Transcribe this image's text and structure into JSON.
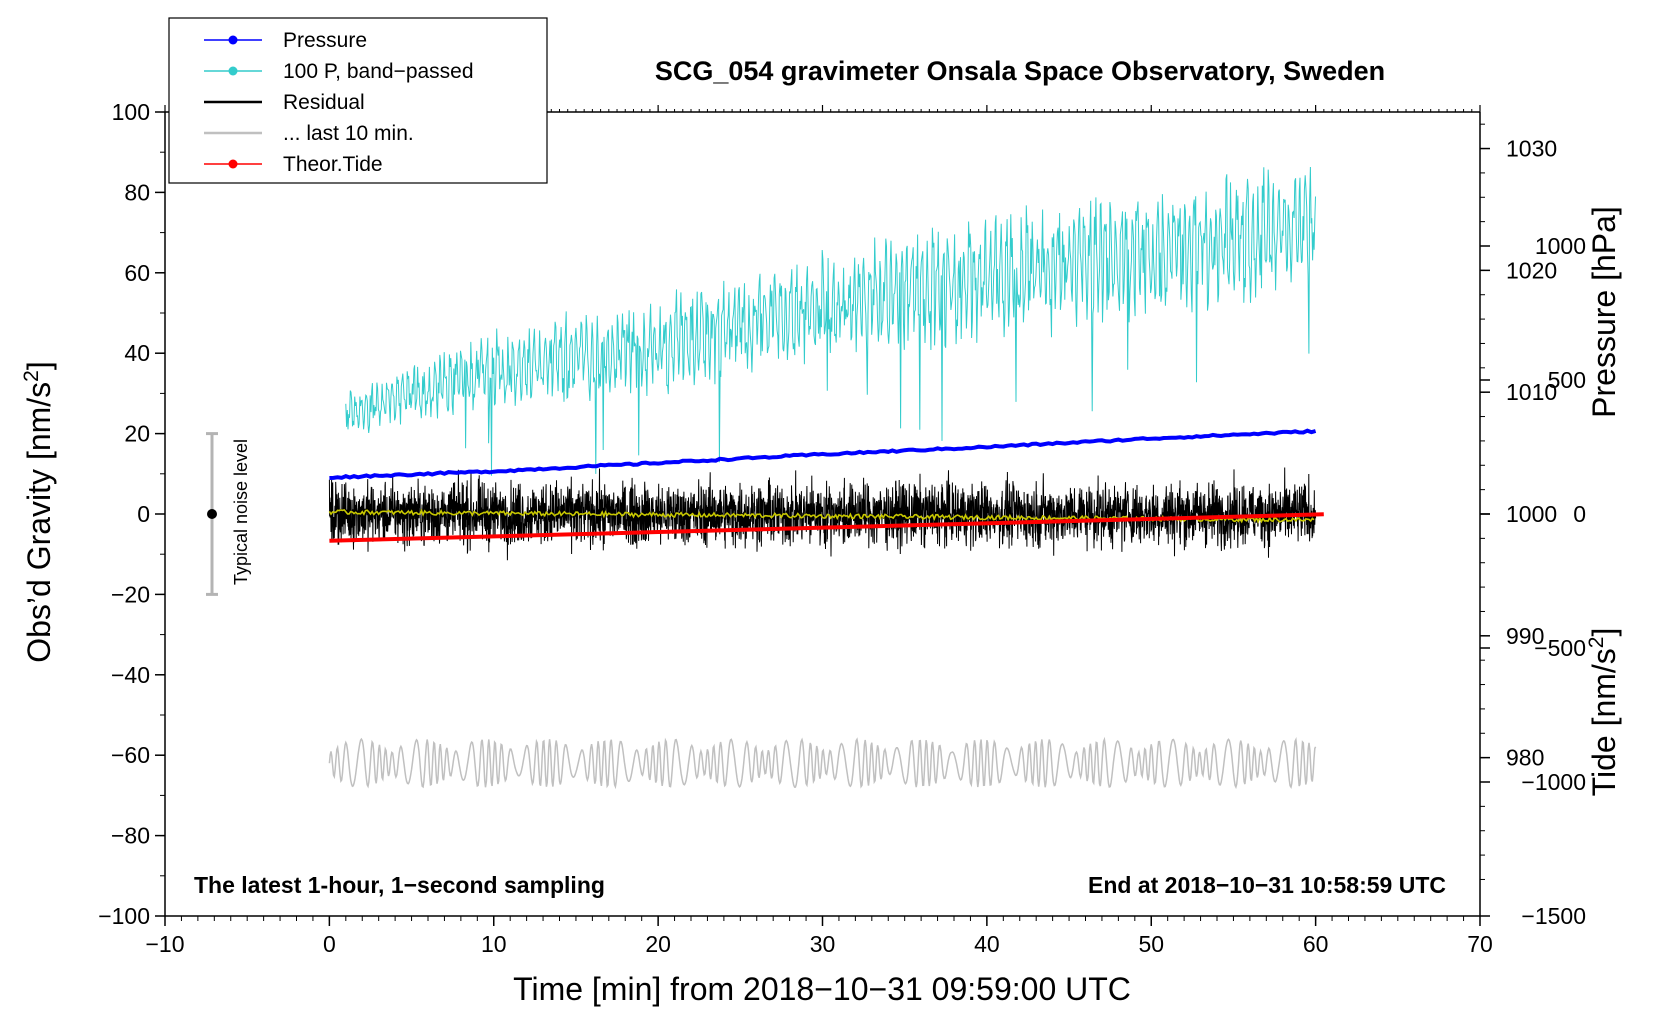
{
  "chart_data": {
    "type": "line",
    "title": "SCG_054 gravimeter Onsala Space Observatory, Sweden",
    "xlabel": "Time [min] from 2018−10−31 09:59:00 UTC",
    "ylabel_left": "Obs’d Gravity [nm/s",
    "ylabel_left_sup": "2",
    "ylabel_left_end": "]",
    "ylabel_pressure": "Pressure [hPa]",
    "ylabel_tide": "Tide [nm/s",
    "ylabel_tide_sup": "2",
    "ylabel_tide_end": "]",
    "xlim": [
      -10,
      70
    ],
    "ylim": [
      -100,
      100
    ],
    "pressure_lim": [
      967,
      1033
    ],
    "tide_lim": [
      -1500,
      1500
    ],
    "x_ticks": [
      -10,
      0,
      10,
      20,
      30,
      40,
      50,
      60,
      70
    ],
    "x_tick_labels": [
      "−10",
      "0",
      "10",
      "20",
      "30",
      "40",
      "50",
      "60",
      "70"
    ],
    "y_ticks": [
      100,
      80,
      60,
      40,
      20,
      0,
      -20,
      -40,
      -60,
      -80,
      -100
    ],
    "y_tick_labels": [
      "100",
      "80",
      "60",
      "40",
      "20",
      "0",
      "−20",
      "−40",
      "−60",
      "−80",
      "−100"
    ],
    "pressure_ticks": [
      980,
      990,
      1000,
      1010,
      1020,
      1030
    ],
    "pressure_tick_labels": [
      "980",
      "990",
      "1000",
      "1010",
      "1020",
      "1030"
    ],
    "tide_ticks": [
      1000,
      500,
      0,
      -500,
      -1000,
      -1500
    ],
    "tide_tick_labels": [
      "1000",
      "500",
      "0",
      "−500",
      "−1000",
      "−1500"
    ],
    "annotations": {
      "left_note": "The latest 1-hour, 1−second sampling",
      "right_note": "End at 2018−10−31 10:58:59 UTC",
      "noise_label": "Typical noise level",
      "noise_bar": [
        -20,
        20
      ]
    },
    "legend": [
      {
        "label": "Pressure",
        "color": "#0000ff",
        "marker": true
      },
      {
        "label": "100 P, band−passed",
        "color": "#33cccc",
        "marker": true
      },
      {
        "label": "Residual",
        "color": "#000000",
        "marker": false
      },
      {
        "label": "... last 10 min.",
        "color": "#c0c0c0",
        "marker": false
      },
      {
        "label": "Theor.Tide",
        "color": "#ff0000",
        "marker": true
      }
    ],
    "series": [
      {
        "name": "Pressure",
        "axis": "pressure",
        "color": "#0000ff",
        "x": [
          0,
          10,
          20,
          30,
          40,
          50,
          60
        ],
        "values": [
          1003,
          1003.5,
          1004.2,
          1004.9,
          1005.5,
          1006.2,
          1006.8
        ]
      },
      {
        "name": "100 P, band−passed",
        "axis": "gravity",
        "color": "#33cccc",
        "x": [
          1,
          10,
          20,
          30,
          40,
          50,
          60
        ],
        "values": [
          25,
          36,
          42,
          52,
          58,
          65,
          72
        ],
        "amplitude": [
          5,
          9,
          11,
          12,
          14,
          15,
          14
        ]
      },
      {
        "name": "Residual",
        "axis": "gravity",
        "color": "#000000",
        "x": [
          0,
          60
        ],
        "values": [
          0,
          0
        ],
        "amplitude": [
          7,
          7
        ]
      },
      {
        "name": "Residual (smoothed)",
        "axis": "gravity",
        "color": "#c8c800",
        "x": [
          0,
          60
        ],
        "values": [
          0.5,
          -1.5
        ]
      },
      {
        "name": "... last 10 min.",
        "axis": "gravity",
        "color": "#c0c0c0",
        "x": [
          0,
          60
        ],
        "values": [
          -62,
          -62
        ],
        "amplitude": [
          6,
          6
        ]
      },
      {
        "name": "Theor.Tide",
        "axis": "tide",
        "color": "#ff0000",
        "x": [
          0,
          60.5
        ],
        "values": [
          -100,
          -1
        ]
      }
    ]
  }
}
